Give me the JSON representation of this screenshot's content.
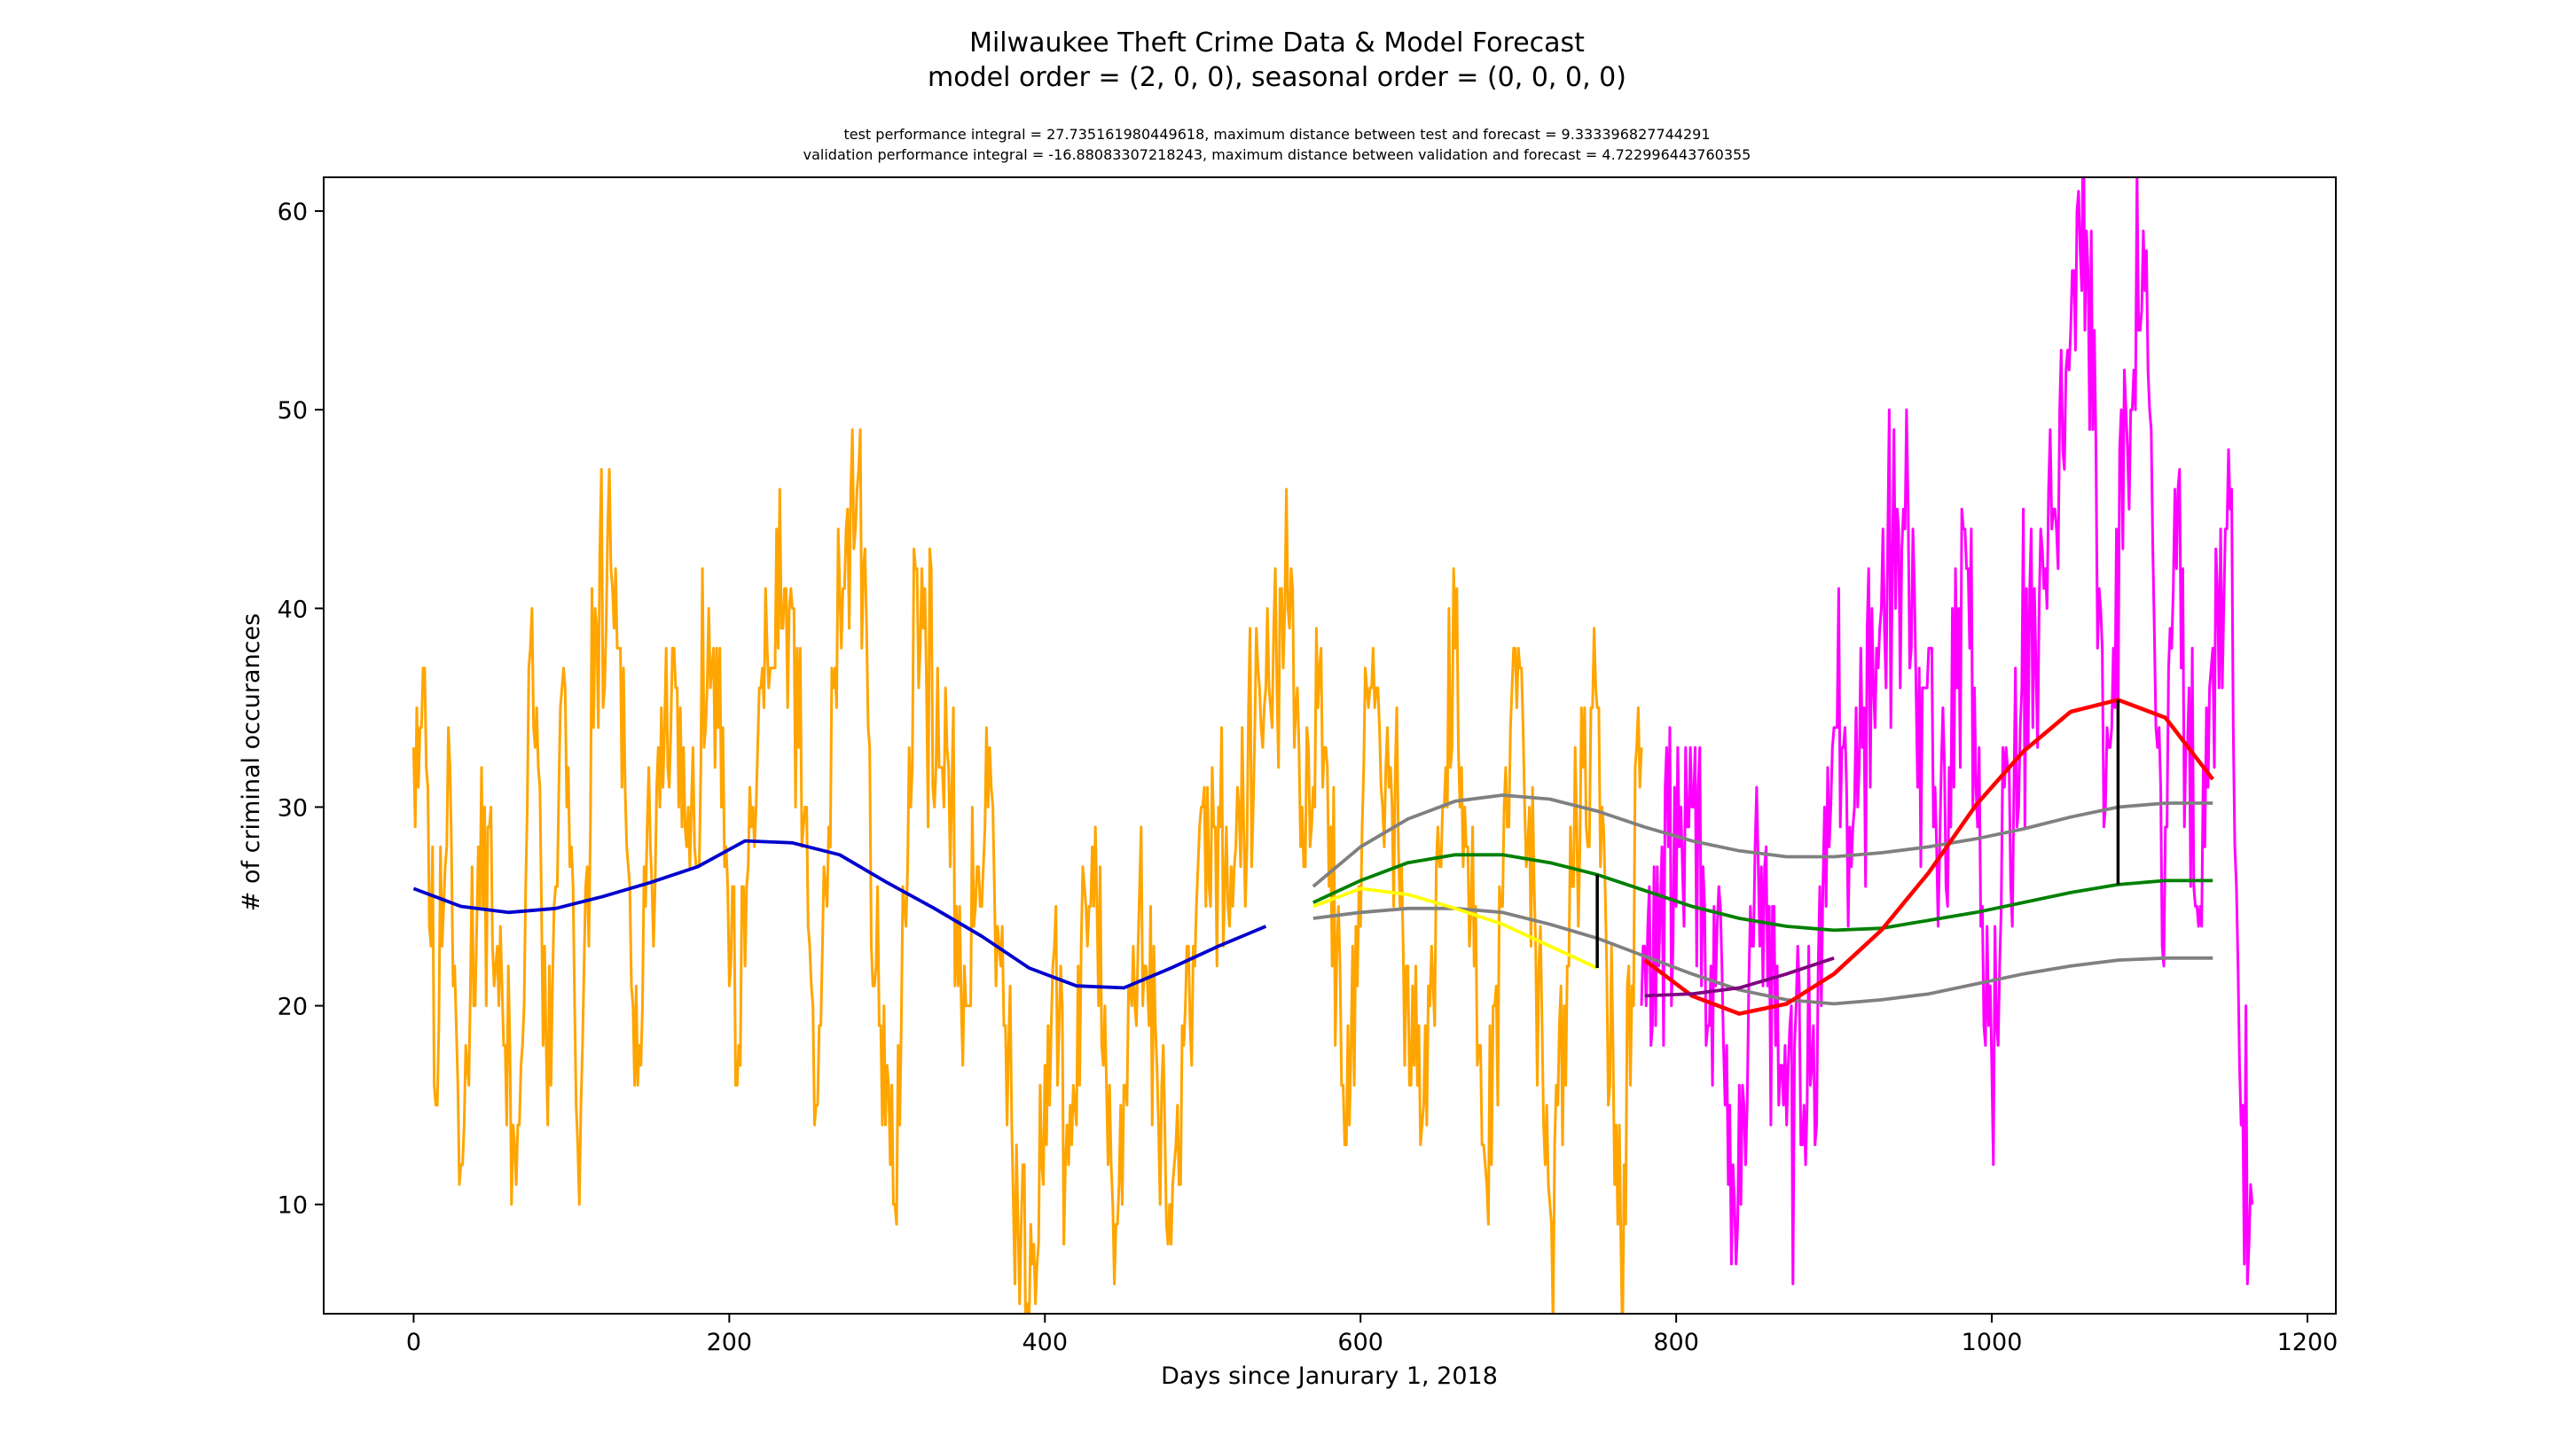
{
  "chart_data": {
    "type": "line",
    "title": "Milwaukee Theft Crime Data & Model Forecast",
    "title_line2": "model order = (2, 0, 0), seasonal order = (0, 0, 0, 0)",
    "subtitle_line1": "test performance integral = 27.735161980449618, maximum distance between test and forecast = 9.333396827744291",
    "subtitle_line2": "validation performance integral = -16.88083307218243, maximum distance between validation and forecast = 4.722996443760355",
    "xlabel": "Days since Janurary 1, 2018",
    "ylabel": "# of criminal occurances",
    "xlim": [
      -57,
      1218
    ],
    "ylim": [
      4.5,
      61.7
    ],
    "xticks": [
      0,
      200,
      400,
      600,
      800,
      1000,
      1200
    ],
    "yticks": [
      10,
      20,
      30,
      40,
      50,
      60
    ],
    "grid": false,
    "legend": "none",
    "colors": {
      "train": "#FFA500",
      "test": "#FF00FF",
      "train_trend": "#0000CD",
      "forecast": "#008000",
      "forecast_band": "#808080",
      "validation_trend": "#FFFF00",
      "test_trend": "#FF0000",
      "test_forecast_overlap": "#800080",
      "max_distance": "#000000"
    },
    "noise_segments": [
      {
        "series": "train",
        "x_start": 0,
        "x_end": 778,
        "keypoints": [
          [
            0,
            33
          ],
          [
            7,
            37
          ],
          [
            14,
            15
          ],
          [
            22,
            34
          ],
          [
            30,
            12
          ],
          [
            45,
            30
          ],
          [
            65,
            11
          ],
          [
            75,
            40
          ],
          [
            85,
            14
          ],
          [
            95,
            37
          ],
          [
            105,
            10
          ],
          [
            115,
            40
          ],
          [
            128,
            42
          ],
          [
            140,
            16
          ],
          [
            160,
            38
          ],
          [
            175,
            27
          ],
          [
            190,
            38
          ],
          [
            205,
            16
          ],
          [
            220,
            36
          ],
          [
            240,
            40
          ],
          [
            255,
            15
          ],
          [
            270,
            41
          ],
          [
            282,
            47
          ],
          [
            295,
            19
          ],
          [
            305,
            10
          ],
          [
            318,
            42
          ],
          [
            335,
            32
          ],
          [
            350,
            20
          ],
          [
            365,
            33
          ],
          [
            380,
            10
          ],
          [
            392,
            7
          ],
          [
            405,
            22
          ],
          [
            415,
            12
          ],
          [
            430,
            28
          ],
          [
            445,
            9
          ],
          [
            460,
            26
          ],
          [
            480,
            8
          ],
          [
            500,
            30
          ],
          [
            520,
            27
          ],
          [
            540,
            36
          ],
          [
            555,
            39
          ],
          [
            565,
            27
          ],
          [
            575,
            38
          ],
          [
            590,
            13
          ],
          [
            605,
            35
          ],
          [
            620,
            30
          ],
          [
            640,
            15
          ],
          [
            660,
            38
          ],
          [
            680,
            11
          ],
          [
            700,
            38
          ],
          [
            720,
            10
          ],
          [
            735,
            26
          ],
          [
            750,
            35
          ],
          [
            765,
            8
          ],
          [
            778,
            33
          ]
        ],
        "noise_amplitude": 6.5,
        "seed": 11
      },
      {
        "series": "test",
        "x_start": 778,
        "x_end": 1165,
        "keypoints": [
          [
            778,
            20
          ],
          [
            790,
            25
          ],
          [
            810,
            30
          ],
          [
            825,
            21
          ],
          [
            838,
            7
          ],
          [
            850,
            28
          ],
          [
            870,
            14
          ],
          [
            890,
            22
          ],
          [
            900,
            34
          ],
          [
            915,
            30
          ],
          [
            930,
            40
          ],
          [
            945,
            44
          ],
          [
            965,
            28
          ],
          [
            985,
            42
          ],
          [
            1000,
            17
          ],
          [
            1010,
            32
          ],
          [
            1030,
            40
          ],
          [
            1048,
            53
          ],
          [
            1060,
            59
          ],
          [
            1072,
            30
          ],
          [
            1085,
            50
          ],
          [
            1098,
            58
          ],
          [
            1108,
            23
          ],
          [
            1118,
            46
          ],
          [
            1130,
            25
          ],
          [
            1140,
            38
          ],
          [
            1150,
            48
          ],
          [
            1158,
            14
          ],
          [
            1165,
            10
          ]
        ],
        "noise_amplitude": 7.5,
        "seed": 29
      }
    ],
    "series": [
      {
        "role": "train_trend",
        "color": "#0000CD",
        "x": [
          0,
          30,
          60,
          90,
          120,
          150,
          180,
          210,
          240,
          270,
          300,
          330,
          360,
          390,
          420,
          450,
          480,
          510,
          540
        ],
        "values": [
          25.9,
          25.0,
          24.7,
          24.9,
          25.5,
          26.2,
          27.0,
          28.3,
          28.2,
          27.6,
          26.2,
          24.9,
          23.5,
          21.9,
          21.0,
          20.9,
          21.9,
          23.0,
          24.0
        ]
      },
      {
        "role": "forecast_upper",
        "color": "#808080",
        "x": [
          570,
          600,
          630,
          660,
          690,
          720,
          750,
          780,
          810,
          840,
          870,
          900,
          930,
          960,
          990,
          1020,
          1050,
          1080,
          1110,
          1140
        ],
        "values": [
          26.0,
          28.0,
          29.4,
          30.3,
          30.6,
          30.4,
          29.8,
          29.0,
          28.3,
          27.8,
          27.5,
          27.5,
          27.7,
          28.0,
          28.4,
          28.9,
          29.5,
          30.0,
          30.2,
          30.2
        ]
      },
      {
        "role": "forecast_lower",
        "color": "#808080",
        "x": [
          570,
          600,
          630,
          660,
          690,
          720,
          750,
          780,
          810,
          840,
          870,
          900,
          930,
          960,
          990,
          1020,
          1050,
          1080,
          1110,
          1140
        ],
        "values": [
          24.4,
          24.7,
          24.9,
          24.9,
          24.7,
          24.1,
          23.4,
          22.5,
          21.6,
          20.8,
          20.3,
          20.1,
          20.3,
          20.6,
          21.1,
          21.6,
          22.0,
          22.3,
          22.4,
          22.4
        ]
      },
      {
        "role": "forecast",
        "color": "#008000",
        "x": [
          570,
          600,
          630,
          660,
          690,
          720,
          750,
          780,
          810,
          840,
          870,
          900,
          930,
          960,
          990,
          1020,
          1050,
          1080,
          1110,
          1140
        ],
        "values": [
          25.2,
          26.3,
          27.2,
          27.6,
          27.6,
          27.2,
          26.6,
          25.8,
          25.0,
          24.4,
          24.0,
          23.8,
          23.9,
          24.3,
          24.7,
          25.2,
          25.7,
          26.1,
          26.3,
          26.3
        ]
      },
      {
        "role": "validation_trend",
        "color": "#FFFF00",
        "x": [
          570,
          600,
          630,
          660,
          690,
          720,
          750
        ],
        "values": [
          25.0,
          25.9,
          25.6,
          24.9,
          24.1,
          23.0,
          21.9
        ]
      },
      {
        "role": "test_trend",
        "color": "#FF0000",
        "x": [
          780,
          810,
          840,
          870,
          900,
          930,
          960,
          990,
          1020,
          1050,
          1080,
          1110,
          1140
        ],
        "values": [
          22.3,
          20.5,
          19.6,
          20.1,
          21.6,
          23.8,
          26.7,
          30.1,
          32.8,
          34.8,
          35.4,
          34.5,
          31.4
        ]
      },
      {
        "role": "test_forecast_overlap",
        "color": "#800080",
        "x": [
          780,
          810,
          840,
          870,
          900
        ],
        "values": [
          20.5,
          20.6,
          20.9,
          21.6,
          22.4
        ]
      }
    ],
    "max_distance_segments": [
      {
        "x": 750,
        "y1": 21.9,
        "y2": 26.6
      },
      {
        "x": 1080,
        "y1": 26.1,
        "y2": 35.4
      }
    ]
  }
}
